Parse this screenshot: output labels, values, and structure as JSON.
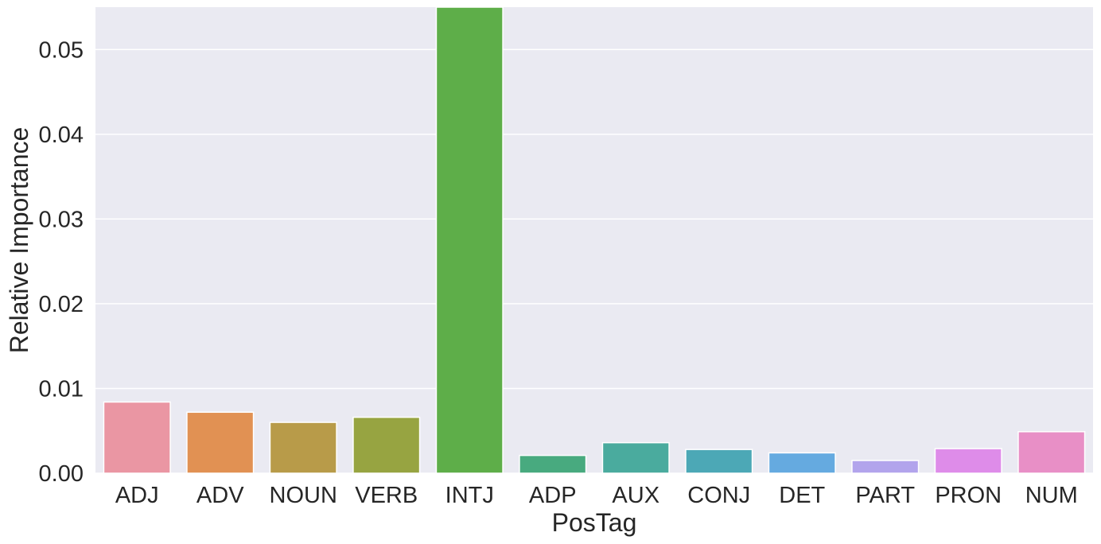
{
  "chart_data": {
    "type": "bar",
    "title": "",
    "xlabel": "PosTag",
    "ylabel": "Relative Importance",
    "categories": [
      "ADJ",
      "ADV",
      "NOUN",
      "VERB",
      "INTJ",
      "ADP",
      "AUX",
      "CONJ",
      "DET",
      "PART",
      "PRON",
      "NUM"
    ],
    "values": [
      0.0084,
      0.0072,
      0.006,
      0.0066,
      0.0555,
      0.0021,
      0.0036,
      0.0028,
      0.0024,
      0.0015,
      0.0029,
      0.0049
    ],
    "colors": [
      "#ea96a3",
      "#e19153",
      "#b89b49",
      "#97a441",
      "#5eae49",
      "#48aa7f",
      "#4aab9e",
      "#4ca8b6",
      "#65aae0",
      "#b2a4ec",
      "#de8ce9",
      "#e88fc6"
    ],
    "yticks": [
      "0.00",
      "0.01",
      "0.02",
      "0.03",
      "0.04",
      "0.05"
    ],
    "ytick_values": [
      0,
      0.01,
      0.02,
      0.03,
      0.04,
      0.05
    ],
    "ylim": [
      0,
      0.055
    ],
    "grid": true,
    "background_color": "#eaeaf2",
    "grid_color": "#ffffff",
    "text_color": "#262626"
  }
}
